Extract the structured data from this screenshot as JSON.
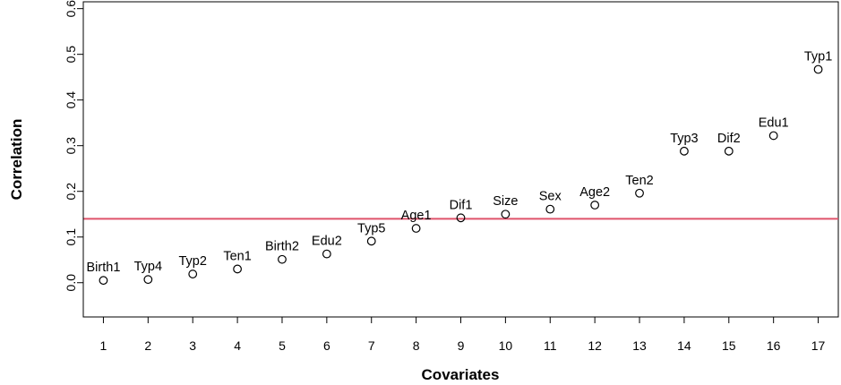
{
  "chart_data": {
    "type": "scatter",
    "title": "",
    "xlabel": "Covariates",
    "ylabel": "Correlation",
    "xlim": [
      0.55,
      17.45
    ],
    "ylim": [
      -0.075,
      0.615
    ],
    "x_ticks": [
      "1",
      "2",
      "3",
      "4",
      "5",
      "6",
      "7",
      "8",
      "9",
      "10",
      "11",
      "12",
      "13",
      "14",
      "15",
      "16",
      "17"
    ],
    "y_ticks": [
      "0.0",
      "0.1",
      "0.2",
      "0.3",
      "0.4",
      "0.5",
      "0.6"
    ],
    "grid": false,
    "reference_line": {
      "y": 0.14,
      "color": "#df536b"
    },
    "points": [
      {
        "x": 1,
        "y": 0.005,
        "label": "Birth1"
      },
      {
        "x": 2,
        "y": 0.007,
        "label": "Typ4"
      },
      {
        "x": 3,
        "y": 0.019,
        "label": "Typ2"
      },
      {
        "x": 4,
        "y": 0.03,
        "label": "Ten1"
      },
      {
        "x": 5,
        "y": 0.051,
        "label": "Birth2"
      },
      {
        "x": 6,
        "y": 0.063,
        "label": "Edu2"
      },
      {
        "x": 7,
        "y": 0.091,
        "label": "Typ5"
      },
      {
        "x": 8,
        "y": 0.119,
        "label": "Age1"
      },
      {
        "x": 9,
        "y": 0.142,
        "label": "Dif1"
      },
      {
        "x": 10,
        "y": 0.15,
        "label": "Size"
      },
      {
        "x": 11,
        "y": 0.161,
        "label": "Sex"
      },
      {
        "x": 12,
        "y": 0.17,
        "label": "Age2"
      },
      {
        "x": 13,
        "y": 0.196,
        "label": "Ten2"
      },
      {
        "x": 14,
        "y": 0.288,
        "label": "Typ3"
      },
      {
        "x": 15,
        "y": 0.288,
        "label": "Dif2"
      },
      {
        "x": 16,
        "y": 0.322,
        "label": "Edu1"
      },
      {
        "x": 17,
        "y": 0.467,
        "label": "Typ1"
      }
    ]
  }
}
